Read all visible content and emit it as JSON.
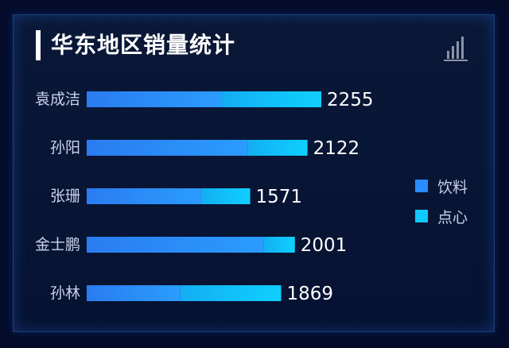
{
  "title": "华东地区销量统计",
  "chart_icon": "bar-chart-icon",
  "colors": {
    "background": "#040c2a",
    "series_drink": "#2a8cff",
    "series_snack": "#0fc8ff",
    "label": "#c8d2ea",
    "value": "#ffffff"
  },
  "chart_data": {
    "type": "bar",
    "orientation": "horizontal",
    "stacked": true,
    "categories": [
      "袁成洁",
      "孙阳",
      "张珊",
      "金士鹏",
      "孙林"
    ],
    "series": [
      {
        "name": "饮料",
        "values": [
          1300,
          1550,
          1100,
          1700,
          900
        ]
      },
      {
        "name": "点心",
        "values": [
          955,
          572,
          471,
          301,
          969
        ]
      }
    ],
    "totals": [
      "2255",
      "2122",
      "1571",
      "2001",
      "1869"
    ],
    "xlim": [
      0,
      2255
    ],
    "grid": false,
    "legend": "right"
  }
}
